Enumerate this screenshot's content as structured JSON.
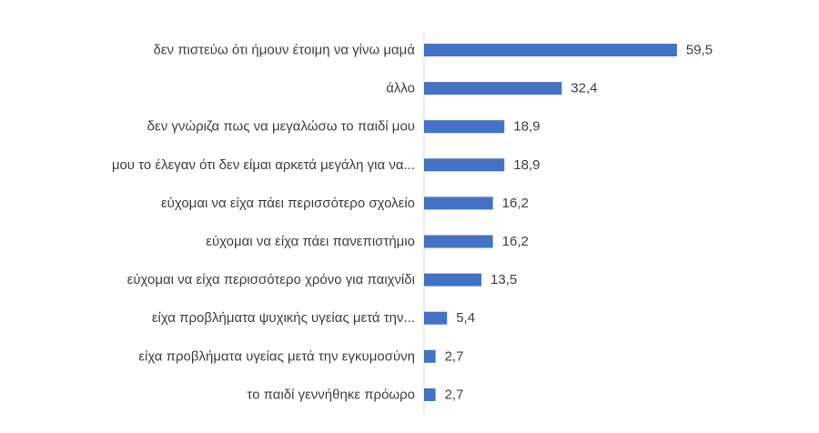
{
  "chart_data": {
    "type": "bar",
    "orientation": "horizontal",
    "categories": [
      "δεν πιστεύω ότι ήμουν έτοιμη να γίνω μαμά",
      "άλλο",
      "δεν γνώριζα πως να μεγαλώσω το παιδί μου",
      "μου το έλεγαν ότι δεν είμαι αρκετά μεγάλη για να...",
      "εύχομαι να είχα πάει περισσότερο σχολείο",
      "εύχομαι να είχα πάει πανεπιστήμιο",
      "εύχομαι να είχα περισσότερο χρόνο για παιχνίδι",
      "είχα προβλήματα ψυχικής υγείας μετά την...",
      "είχα προβλήματα υγείας μετά την εγκυμοσύνη",
      "το παιδί γεννήθηκε πρόωρο"
    ],
    "values": [
      59.5,
      32.4,
      18.9,
      18.9,
      16.2,
      16.2,
      13.5,
      5.4,
      2.7,
      2.7
    ],
    "value_labels": [
      "59,5",
      "32,4",
      "18,9",
      "18,9",
      "16,2",
      "16,2",
      "13,5",
      "5,4",
      "2,7",
      "2,7"
    ],
    "title": "",
    "xlabel": "",
    "ylabel": "",
    "grid": false,
    "legend": "none",
    "colors": {
      "bar": "#4472c4",
      "category_text": "#404040",
      "value_text": "#404040",
      "axis_line": "#d9d9d9"
    }
  }
}
